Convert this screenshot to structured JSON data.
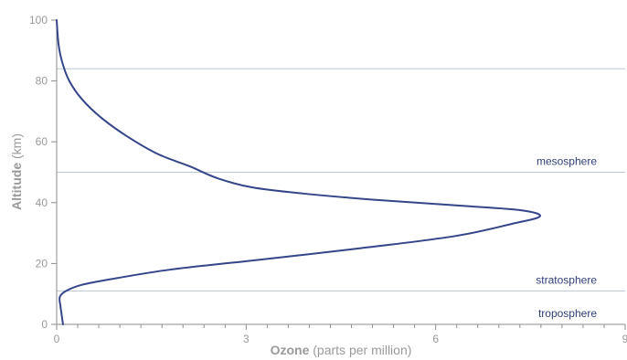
{
  "chart_data": {
    "type": "line",
    "orientation": "vertical-profile",
    "x_ticks": [
      0,
      3,
      6,
      9
    ],
    "y_ticks": [
      0,
      20,
      40,
      60,
      80,
      100
    ],
    "xlim": [
      0,
      9
    ],
    "ylim": [
      0,
      100
    ],
    "xlabel_strong": "Ozone",
    "xlabel_rest": "(parts per million)",
    "ylabel_strong": "Altitude",
    "ylabel_rest": "(km)",
    "boundaries": [
      {
        "altitude": 84,
        "label": ""
      },
      {
        "altitude": 50,
        "label": "mesosphere"
      },
      {
        "altitude": 11,
        "label": "stratosphere"
      },
      {
        "altitude": 0,
        "label": "troposphere"
      }
    ],
    "series": [
      {
        "points": [
          {
            "x": 0.1,
            "y": 0
          },
          {
            "x": 0.08,
            "y": 3
          },
          {
            "x": 0.06,
            "y": 6
          },
          {
            "x": 0.05,
            "y": 9
          },
          {
            "x": 0.15,
            "y": 11
          },
          {
            "x": 0.4,
            "y": 13
          },
          {
            "x": 0.9,
            "y": 15
          },
          {
            "x": 1.8,
            "y": 18
          },
          {
            "x": 3.1,
            "y": 21
          },
          {
            "x": 4.8,
            "y": 25
          },
          {
            "x": 6.3,
            "y": 29
          },
          {
            "x": 7.2,
            "y": 33
          },
          {
            "x": 7.65,
            "y": 35.5
          },
          {
            "x": 7.35,
            "y": 37.5
          },
          {
            "x": 6.4,
            "y": 39
          },
          {
            "x": 5.0,
            "y": 41
          },
          {
            "x": 3.9,
            "y": 43
          },
          {
            "x": 3.1,
            "y": 45
          },
          {
            "x": 2.55,
            "y": 48
          },
          {
            "x": 2.1,
            "y": 52
          },
          {
            "x": 1.6,
            "y": 56
          },
          {
            "x": 1.1,
            "y": 62
          },
          {
            "x": 0.7,
            "y": 68
          },
          {
            "x": 0.4,
            "y": 74
          },
          {
            "x": 0.2,
            "y": 80
          },
          {
            "x": 0.09,
            "y": 86
          },
          {
            "x": 0.03,
            "y": 92
          },
          {
            "x": 0.0,
            "y": 100
          }
        ]
      }
    ]
  }
}
